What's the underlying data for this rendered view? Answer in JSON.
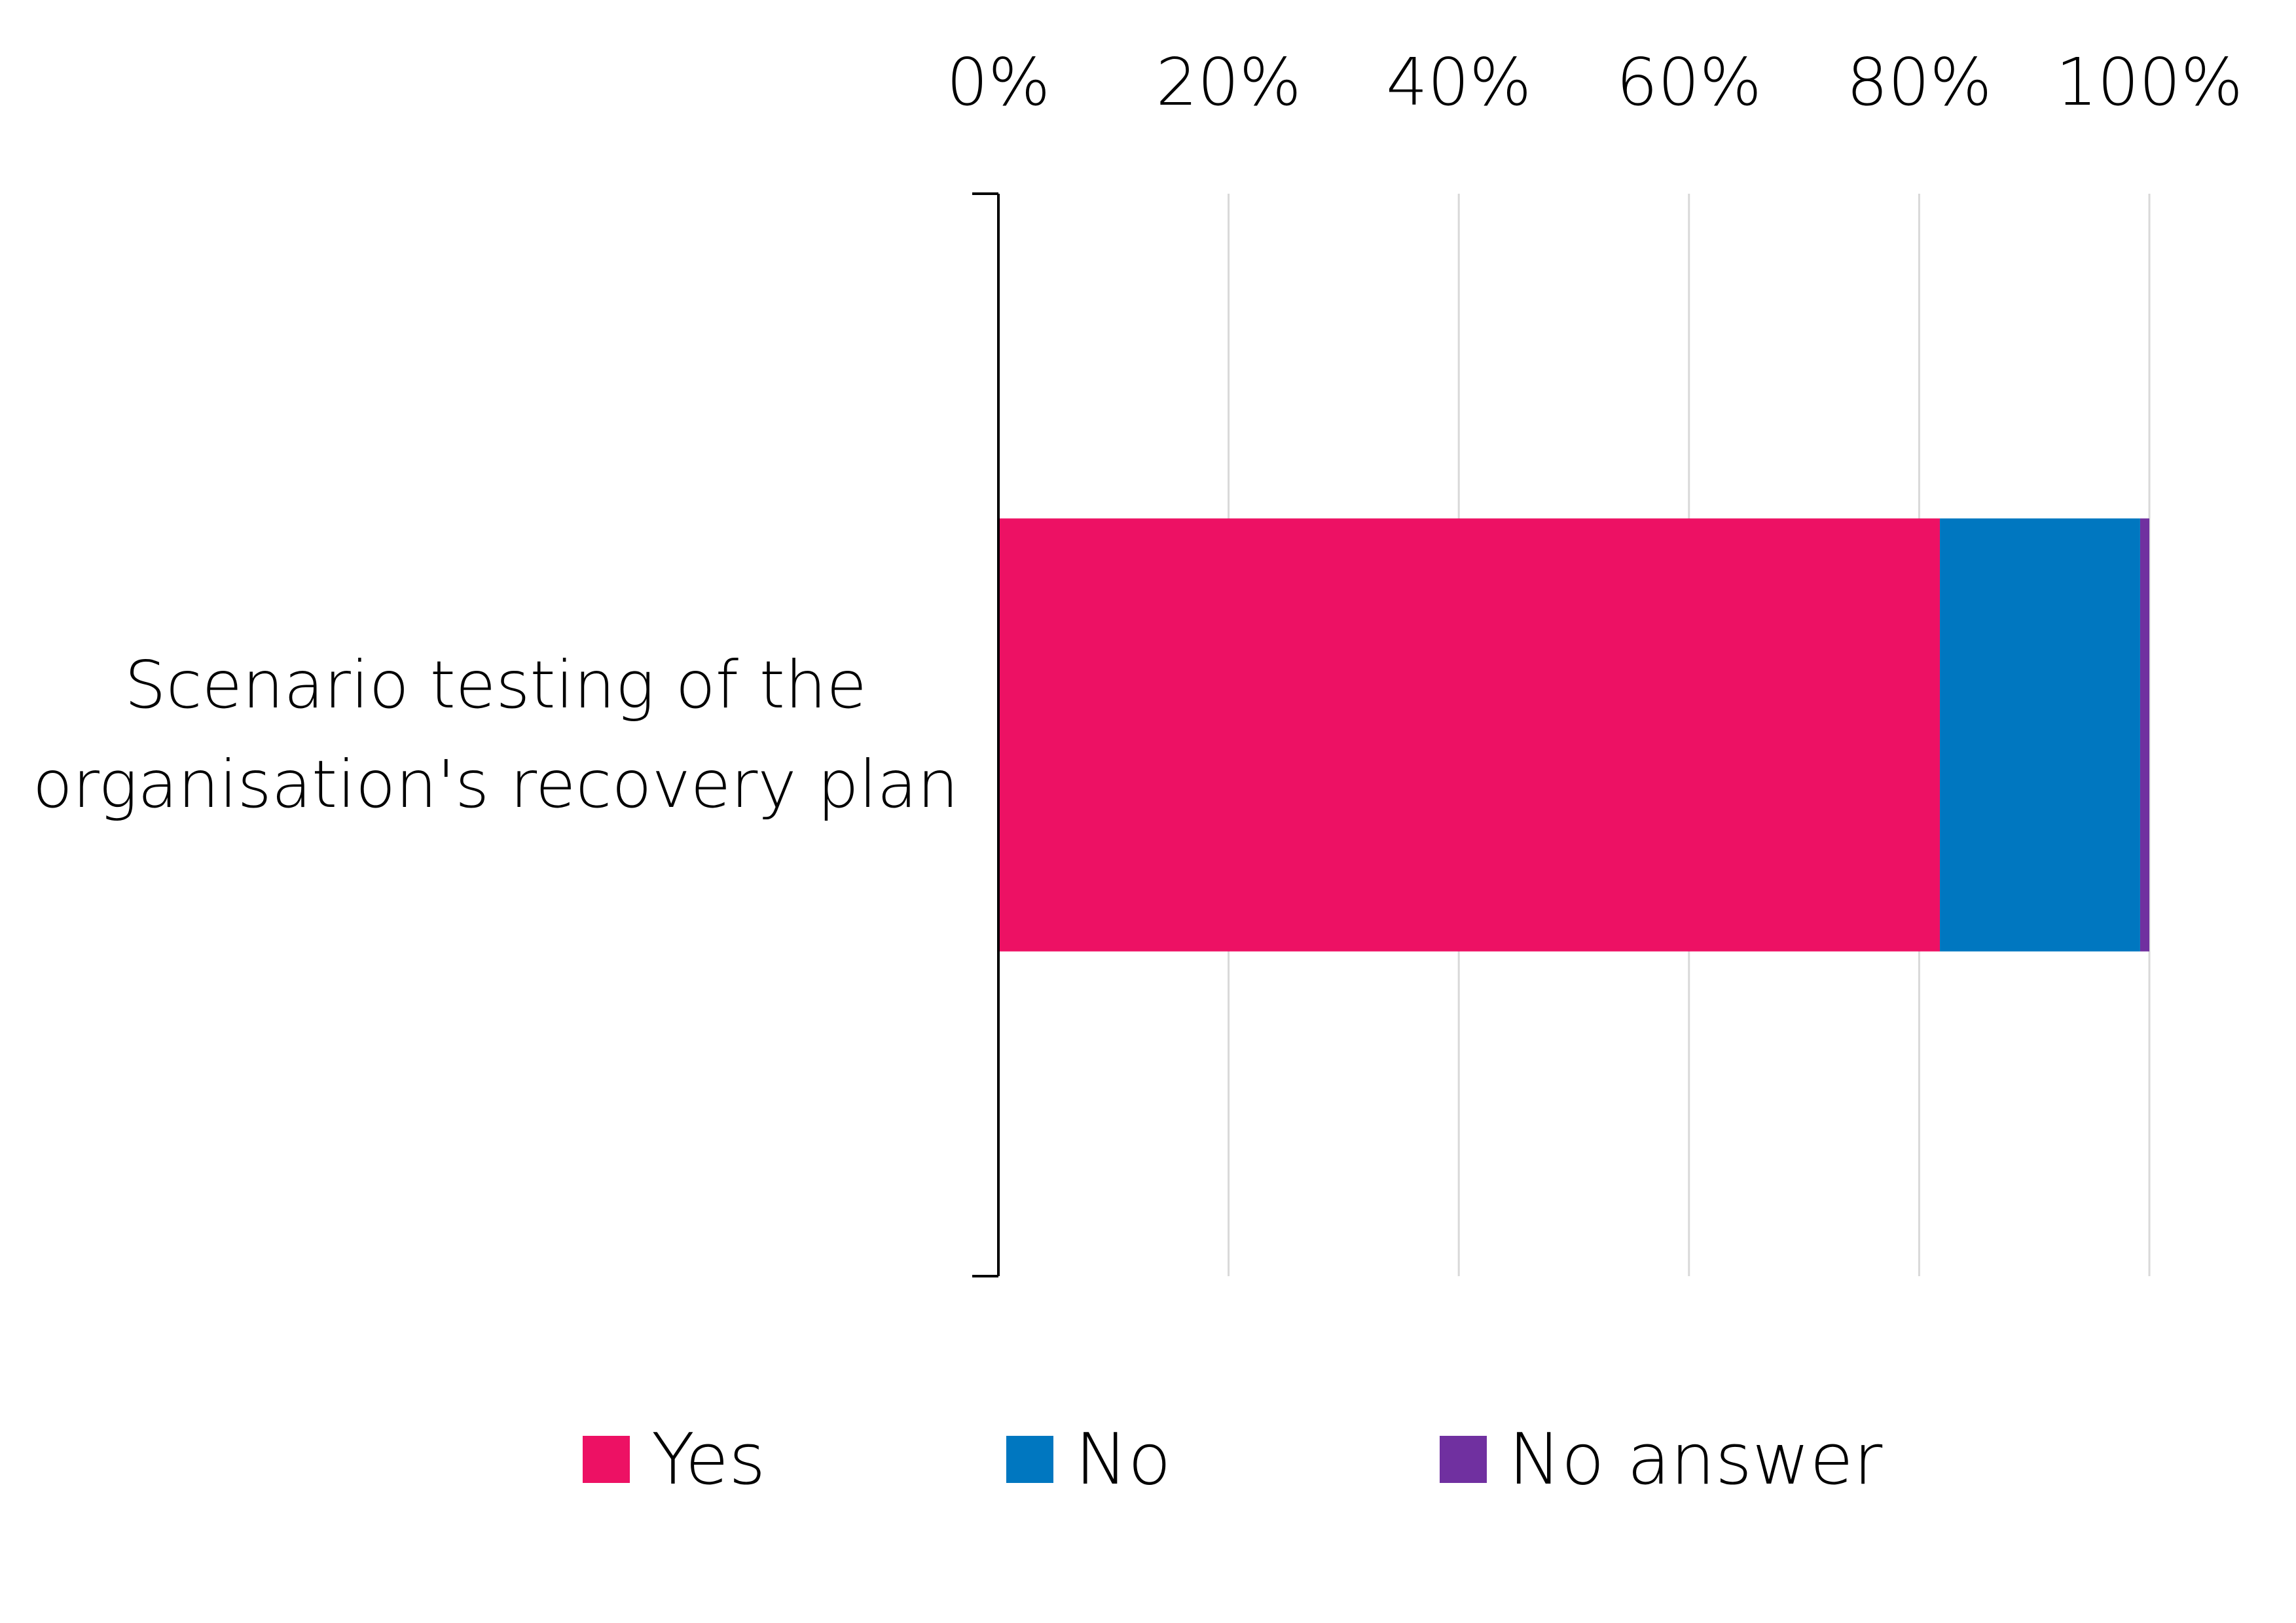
{
  "chart_data": {
    "type": "bar",
    "orientation": "horizontal",
    "stacked": "percent",
    "categories": [
      "Scenario testing of the organisation's recovery plan"
    ],
    "category_label_lines": [
      [
        "Scenario testing of the",
        "organisation's recovery plan"
      ]
    ],
    "series": [
      {
        "name": "Yes",
        "values": [
          81.8
        ],
        "color": "#ED1164"
      },
      {
        "name": "No",
        "values": [
          17.4
        ],
        "color": "#0077C0"
      },
      {
        "name": "No answer",
        "values": [
          0.8
        ],
        "color": "#7030A0"
      }
    ],
    "x_ticks": [
      "0%",
      "20%",
      "40%",
      "60%",
      "80%",
      "100%"
    ],
    "xlim": [
      0,
      100
    ],
    "x_axis_position": "top",
    "grid": true,
    "gridline_color": "#D9D9D9",
    "legend_position": "bottom",
    "title": "",
    "xlabel": "",
    "ylabel": ""
  }
}
